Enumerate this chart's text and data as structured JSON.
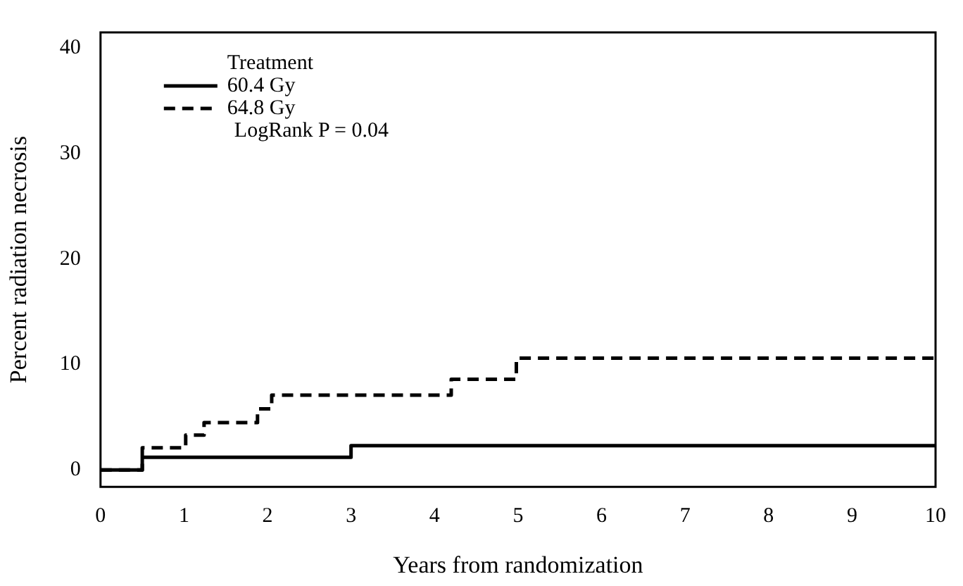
{
  "chart_data": {
    "type": "step",
    "xlabel": "Years from randomization",
    "ylabel": "Percent radiation necrosis",
    "legend_title": "Treatment",
    "legend": "top left",
    "grid": false,
    "xlim": [
      0,
      10
    ],
    "xticks": [
      0,
      1,
      2,
      3,
      4,
      5,
      6,
      7,
      8,
      9,
      10
    ],
    "ylim": [
      -1.6,
      41.5
    ],
    "yticks": [
      0,
      10,
      20,
      30,
      40
    ],
    "series": [
      {
        "name": "60.4 Gy",
        "color": "#000000",
        "line_style": "solid",
        "x": [
          0,
          0.5,
          3,
          10
        ],
        "values": [
          0,
          1.2,
          2.3,
          2.3
        ]
      },
      {
        "name": "64.8 Gy",
        "color": "#000000",
        "line_style": "dashed",
        "x": [
          0,
          0.5,
          1.02,
          1.24,
          1.88,
          2.05,
          4.2,
          4.98,
          10
        ],
        "values": [
          0,
          2.1,
          3.3,
          4.5,
          5.8,
          7.1,
          8.6,
          10.6,
          10.5
        ]
      }
    ],
    "annotations": [
      "LogRank P = 0.04"
    ]
  }
}
